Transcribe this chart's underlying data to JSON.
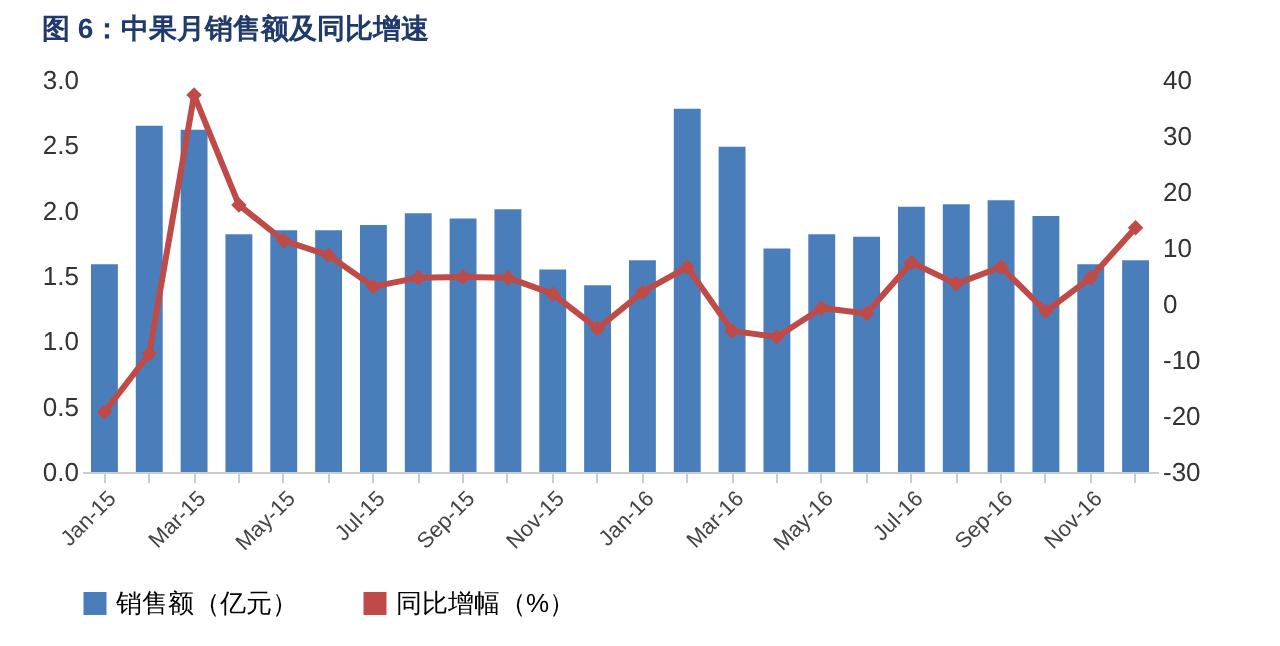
{
  "chart_data": {
    "type": "bar",
    "title": "图 6：中果月销售额及同比增速",
    "categories": [
      "Jan-15",
      null,
      "Mar-15",
      null,
      "May-15",
      null,
      "Jul-15",
      null,
      "Sep-15",
      null,
      "Nov-15",
      null,
      "Jan-16",
      null,
      "Mar-16",
      null,
      "May-16",
      null,
      "Jul-16",
      null,
      "Sep-16",
      null,
      "Nov-16",
      null
    ],
    "series": [
      {
        "name": "销售额（亿元）",
        "color": "#4a7ebb",
        "values": [
          1.59,
          2.65,
          2.62,
          1.82,
          1.85,
          1.85,
          1.89,
          1.98,
          1.94,
          2.01,
          1.55,
          1.43,
          1.62,
          2.78,
          2.49,
          1.71,
          1.82,
          1.8,
          2.03,
          2.05,
          2.08,
          1.96,
          1.59,
          1.62
        ]
      },
      {
        "name": "同比增幅（%）",
        "type": "line",
        "axis": "y2",
        "color": "#be4b48",
        "values": [
          -19.3,
          -8.9,
          37.3,
          17.7,
          11.3,
          8.7,
          3.1,
          4.7,
          4.8,
          4.7,
          1.8,
          -4.4,
          2.1,
          6.6,
          -4.8,
          -5.9,
          -0.7,
          -1.7,
          7.4,
          3.6,
          6.6,
          -1.3,
          4.7,
          13.6
        ]
      }
    ],
    "ylim": [
      0,
      3
    ],
    "yticks": [
      {
        "value": 0,
        "label": "0.0"
      },
      {
        "value": 0.5,
        "label": "0.5"
      },
      {
        "value": 1,
        "label": "1.0"
      },
      {
        "value": 1.5,
        "label": "1.5"
      },
      {
        "value": 2,
        "label": "2.0"
      },
      {
        "value": 2.5,
        "label": "2.5"
      },
      {
        "value": 3,
        "label": "3.0"
      }
    ],
    "y2lim": [
      -30,
      40
    ],
    "y2ticks": [
      -30,
      -20,
      -10,
      0,
      10,
      20,
      30,
      40
    ],
    "marker": "diamond",
    "legend": "bottom"
  }
}
